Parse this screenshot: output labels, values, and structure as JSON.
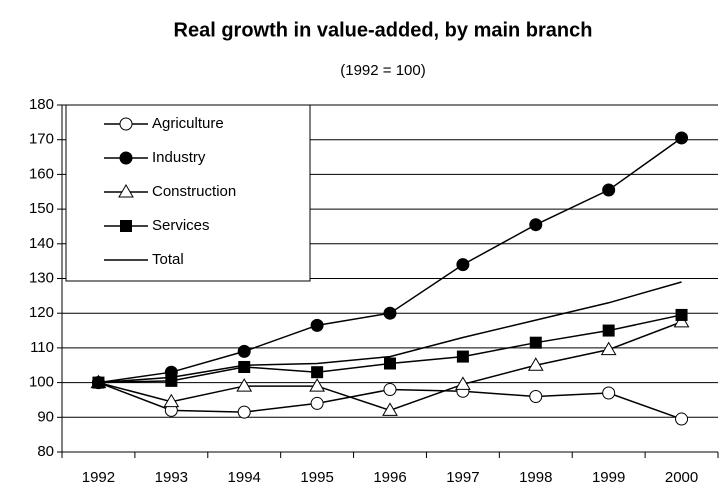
{
  "chart_data": {
    "type": "line",
    "title": "Real growth in value-added, by main branch",
    "subtitle": "(1992 = 100)",
    "categories": [
      "1992",
      "1993",
      "1994",
      "1995",
      "1996",
      "1997",
      "1998",
      "1999",
      "2000"
    ],
    "series": [
      {
        "name": "Agriculture",
        "color": "#000000",
        "marker": "open-circle",
        "values": [
          100,
          92,
          91.5,
          94,
          98,
          97.5,
          96,
          97,
          89.5
        ]
      },
      {
        "name": "Industry",
        "color": "#000000",
        "marker": "filled-circle",
        "values": [
          100,
          103,
          109,
          116.5,
          120,
          134,
          145.5,
          155.5,
          170.5
        ]
      },
      {
        "name": "Construction",
        "color": "#000000",
        "marker": "open-triangle",
        "values": [
          100,
          94.5,
          99,
          99,
          92,
          99.5,
          105,
          109.5,
          117.5
        ]
      },
      {
        "name": "Services",
        "color": "#000000",
        "marker": "filled-square",
        "values": [
          100,
          100.5,
          104.5,
          103,
          105.5,
          107.5,
          111.5,
          115,
          119.5
        ]
      },
      {
        "name": "Total",
        "color": "#000000",
        "marker": "none",
        "values": [
          100,
          101.5,
          105,
          105.5,
          107.5,
          113,
          118,
          123,
          129
        ]
      }
    ],
    "ylim": [
      80,
      180
    ],
    "yticks": [
      80,
      90,
      100,
      110,
      120,
      130,
      140,
      150,
      160,
      170,
      180
    ],
    "grid": true,
    "legend": "upper left"
  }
}
